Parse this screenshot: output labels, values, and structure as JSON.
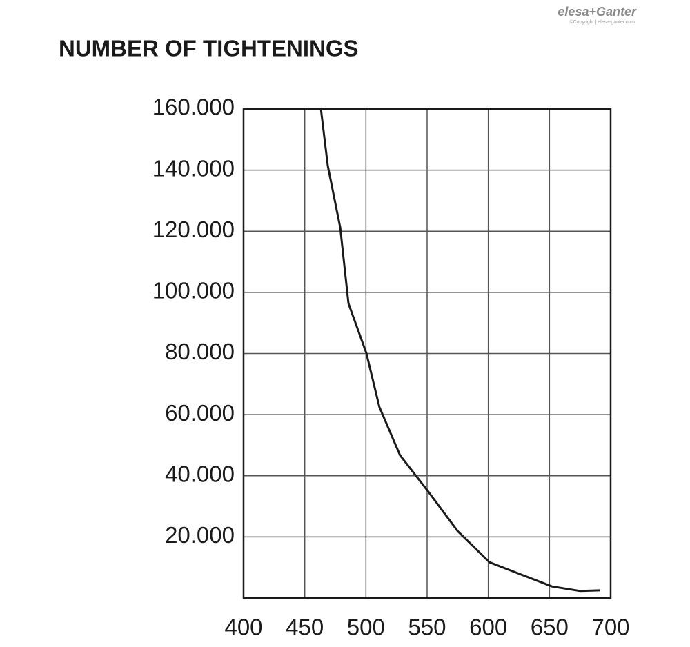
{
  "logo": {
    "brand": "elesa+Ganter",
    "copyright": "©Copyright | elesa-ganter.com"
  },
  "chart_data": {
    "type": "line",
    "title": "NUMBER OF TIGHTENINGS",
    "x": [
      463.2,
      468.8,
      479,
      485.7,
      500.4,
      511,
      527.9,
      550.6,
      575,
      601,
      652,
      675,
      691
    ],
    "series": [
      {
        "color": "#1a1a1a",
        "values": [
          160000,
          141500,
          121200,
          96400,
          80100,
          62500,
          46700,
          35000,
          21900,
          11700,
          3800,
          2300,
          2500
        ]
      }
    ],
    "xlim": [
      400,
      700
    ],
    "ylim": [
      0,
      160000
    ],
    "xticks": [
      400,
      450,
      500,
      550,
      600,
      650,
      700
    ],
    "yticks": [
      {
        "value": 20000,
        "label": "20.000"
      },
      {
        "value": 40000,
        "label": "40.000"
      },
      {
        "value": 60000,
        "label": "60.000"
      },
      {
        "value": 80000,
        "label": "80.000"
      },
      {
        "value": 100000,
        "label": "100.000"
      },
      {
        "value": 120000,
        "label": "120.000"
      },
      {
        "value": 140000,
        "label": "140.000"
      },
      {
        "value": 160000,
        "label": "160.000"
      }
    ],
    "grid": true
  }
}
